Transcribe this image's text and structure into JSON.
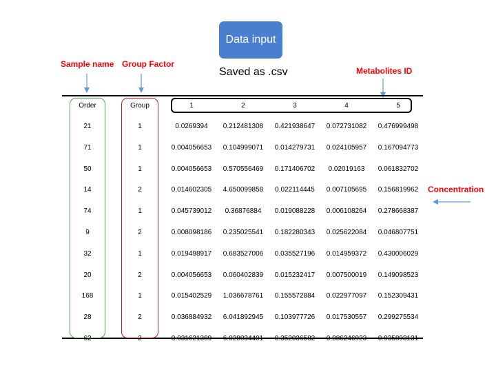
{
  "header": {
    "data_input_label": "Data input",
    "saved_as": "Saved as .csv"
  },
  "annotations": {
    "sample_name": "Sample name",
    "group_factor": "Group Factor",
    "metabolites_id": "Metabolites ID",
    "concentration": "Concentration"
  },
  "colors": {
    "data_input_bg": "#4a7fcf",
    "label_red": "#ff0000",
    "sample_box": "#4ea84e",
    "group_box": "#c02020",
    "arrow": "#5b9bd5"
  },
  "table": {
    "headers": [
      "Order",
      "Group",
      "1",
      "2",
      "3",
      "4",
      "5"
    ],
    "rows": [
      [
        "21",
        "1",
        "0.0269394",
        "0.212481308",
        "0.421938647",
        "0.072731082",
        "0.476999498"
      ],
      [
        "71",
        "1",
        "0.004056653",
        "0.104999071",
        "0.014279731",
        "0.024105957",
        "0.167094773"
      ],
      [
        "50",
        "1",
        "0.004056653",
        "0.570556469",
        "0.171406702",
        "0.02019163",
        "0.061832702"
      ],
      [
        "14",
        "2",
        "0.014602305",
        "4.650099858",
        "0.022114445",
        "0.007105695",
        "0.156819962"
      ],
      [
        "74",
        "1",
        "0.045739012",
        "0.36876884",
        "0.019088228",
        "0.006108264",
        "0.278668387"
      ],
      [
        "9",
        "2",
        "0.008098186",
        "0.235025541",
        "0.182280343",
        "0.025622084",
        "0.046807751"
      ],
      [
        "32",
        "1",
        "0.019498917",
        "0.683527006",
        "0.035527196",
        "0.014959372",
        "0.430006029"
      ],
      [
        "20",
        "2",
        "0.004056653",
        "0.060402839",
        "0.015232417",
        "0.007500019",
        "0.149098523"
      ],
      [
        "168",
        "1",
        "0.015402529",
        "1.036678761",
        "0.155572884",
        "0.022977097",
        "0.152309431"
      ],
      [
        "28",
        "2",
        "0.036884932",
        "6.041892945",
        "0.103977726",
        "0.017530557",
        "0.299275534"
      ],
      [
        "62",
        "2",
        "0.031621389",
        "6.028034401",
        "0.352036582",
        "0.086246923",
        "0.935893131"
      ]
    ]
  }
}
